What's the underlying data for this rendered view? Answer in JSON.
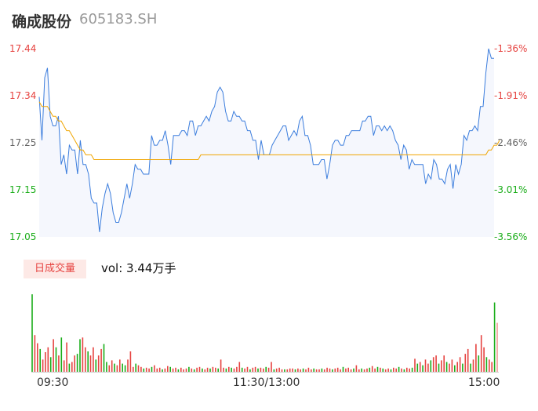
{
  "header": {
    "name": "确成股份",
    "code": "605183.SH"
  },
  "volume": {
    "badge": "日成交量",
    "text": "vol: 3.44万手"
  },
  "colors": {
    "price": "#3b7ddd",
    "avg": "#f0a500",
    "up": "#e64340",
    "down": "#1aad19",
    "area": "#f5f7fd"
  },
  "chart_data": {
    "type": "line",
    "title": "",
    "y_left_ticks": [
      "17.44",
      "17.34",
      "17.25",
      "17.15",
      "17.05"
    ],
    "y_right_ticks": [
      "-1.36%",
      "-1.91%",
      "-2.46%",
      "-3.01%",
      "-3.56%"
    ],
    "x_ticks": [
      "09:30",
      "11:30/13:00",
      "15:00"
    ],
    "ylim": [
      17.05,
      17.44
    ],
    "series": [
      {
        "values": [
          17.34,
          17.25,
          17.38,
          17.4,
          17.3,
          17.28,
          17.28,
          17.3,
          17.2,
          17.22,
          17.18,
          17.24,
          17.23,
          17.23,
          17.18,
          17.25,
          17.2,
          17.2,
          17.18,
          17.13,
          17.12,
          17.12,
          17.06,
          17.11,
          17.14,
          17.16,
          17.14,
          17.1,
          17.08,
          17.08,
          17.1,
          17.13,
          17.16,
          17.13,
          17.16,
          17.2,
          17.19,
          17.19,
          17.18,
          17.18,
          17.18,
          17.26,
          17.24,
          17.24,
          17.25,
          17.25,
          17.27,
          17.24,
          17.2,
          17.26,
          17.26,
          17.26,
          17.27,
          17.27,
          17.26,
          17.29,
          17.29,
          17.26,
          17.28,
          17.28,
          17.29,
          17.3,
          17.29,
          17.31,
          17.32,
          17.35,
          17.36,
          17.35,
          17.31,
          17.29,
          17.29,
          17.31,
          17.3,
          17.3,
          17.29,
          17.29,
          17.27,
          17.27,
          17.25,
          17.25,
          17.21,
          17.25,
          17.22,
          17.22,
          17.22,
          17.24,
          17.25,
          17.26,
          17.27,
          17.28,
          17.28,
          17.25,
          17.26,
          17.27,
          17.26,
          17.29,
          17.3,
          17.26,
          17.26,
          17.24,
          17.2,
          17.2,
          17.2,
          17.21,
          17.21,
          17.17,
          17.2,
          17.24,
          17.25,
          17.25,
          17.24,
          17.24,
          17.26,
          17.26,
          17.27,
          17.27,
          17.27,
          17.27,
          17.29,
          17.29,
          17.3,
          17.3,
          17.26,
          17.28,
          17.28,
          17.27,
          17.28,
          17.27,
          17.28,
          17.27,
          17.25,
          17.24,
          17.21,
          17.24,
          17.23,
          17.19,
          17.21,
          17.2,
          17.2,
          17.2,
          17.2,
          17.16,
          17.18,
          17.17,
          17.21,
          17.2,
          17.17,
          17.17,
          17.16,
          17.19,
          17.2,
          17.15,
          17.2,
          17.18,
          17.2,
          17.26,
          17.25,
          17.27,
          17.27,
          17.28,
          17.27,
          17.32,
          17.32,
          17.39,
          17.44,
          17.42,
          17.42
        ]
      },
      {
        "values": [
          17.33,
          17.32,
          17.32,
          17.32,
          17.31,
          17.3,
          17.3,
          17.29,
          17.29,
          17.28,
          17.27,
          17.27,
          17.26,
          17.25,
          17.24,
          17.23,
          17.23,
          17.22,
          17.22,
          17.22,
          17.21,
          17.21,
          17.21,
          17.21,
          17.21,
          17.21,
          17.21,
          17.21,
          17.21,
          17.21,
          17.21,
          17.21,
          17.21,
          17.21,
          17.21,
          17.21,
          17.21,
          17.21,
          17.21,
          17.21,
          17.21,
          17.21,
          17.21,
          17.21,
          17.21,
          17.21,
          17.21,
          17.21,
          17.21,
          17.21,
          17.21,
          17.21,
          17.21,
          17.21,
          17.21,
          17.21,
          17.21,
          17.21,
          17.21,
          17.22,
          17.22,
          17.22,
          17.22,
          17.22,
          17.22,
          17.22,
          17.22,
          17.22,
          17.22,
          17.22,
          17.22,
          17.22,
          17.22,
          17.22,
          17.22,
          17.22,
          17.22,
          17.22,
          17.22,
          17.22,
          17.22,
          17.22,
          17.22,
          17.22,
          17.22,
          17.22,
          17.22,
          17.22,
          17.22,
          17.22,
          17.22,
          17.22,
          17.22,
          17.22,
          17.22,
          17.22,
          17.22,
          17.22,
          17.22,
          17.22,
          17.22,
          17.22,
          17.22,
          17.22,
          17.22,
          17.22,
          17.22,
          17.22,
          17.22,
          17.22,
          17.22,
          17.22,
          17.22,
          17.22,
          17.22,
          17.22,
          17.22,
          17.22,
          17.22,
          17.22,
          17.22,
          17.22,
          17.22,
          17.22,
          17.22,
          17.22,
          17.22,
          17.22,
          17.22,
          17.22,
          17.22,
          17.22,
          17.22,
          17.22,
          17.22,
          17.22,
          17.22,
          17.22,
          17.22,
          17.22,
          17.22,
          17.22,
          17.22,
          17.22,
          17.22,
          17.22,
          17.22,
          17.22,
          17.22,
          17.22,
          17.22,
          17.22,
          17.22,
          17.22,
          17.22,
          17.22,
          17.22,
          17.22,
          17.22,
          17.22,
          17.22,
          17.22,
          17.22,
          17.22,
          17.23,
          17.23,
          17.24,
          17.24,
          17.25
        ]
      }
    ],
    "volume_bars": [
      [
        0.95,
        "down"
      ],
      [
        0.45,
        "up"
      ],
      [
        0.35,
        "up"
      ],
      [
        0.28,
        "down"
      ],
      [
        0.15,
        "up"
      ],
      [
        0.24,
        "up"
      ],
      [
        0.3,
        "up"
      ],
      [
        0.18,
        "down"
      ],
      [
        0.4,
        "up"
      ],
      [
        0.3,
        "down"
      ],
      [
        0.2,
        "up"
      ],
      [
        0.42,
        "down"
      ],
      [
        0.14,
        "up"
      ],
      [
        0.36,
        "up"
      ],
      [
        0.1,
        "down"
      ],
      [
        0.12,
        "up"
      ],
      [
        0.2,
        "up"
      ],
      [
        0.22,
        "down"
      ],
      [
        0.4,
        "down"
      ],
      [
        0.42,
        "up"
      ],
      [
        0.3,
        "up"
      ],
      [
        0.25,
        "down"
      ],
      [
        0.2,
        "up"
      ],
      [
        0.3,
        "up"
      ],
      [
        0.15,
        "down"
      ],
      [
        0.2,
        "up"
      ],
      [
        0.28,
        "up"
      ],
      [
        0.34,
        "down"
      ],
      [
        0.12,
        "down"
      ],
      [
        0.08,
        "up"
      ],
      [
        0.14,
        "up"
      ],
      [
        0.1,
        "down"
      ],
      [
        0.08,
        "up"
      ],
      [
        0.15,
        "up"
      ],
      [
        0.1,
        "down"
      ],
      [
        0.08,
        "down"
      ],
      [
        0.15,
        "up"
      ],
      [
        0.25,
        "up"
      ],
      [
        0.06,
        "up"
      ],
      [
        0.1,
        "down"
      ],
      [
        0.08,
        "up"
      ],
      [
        0.06,
        "up"
      ],
      [
        0.04,
        "down"
      ],
      [
        0.05,
        "up"
      ],
      [
        0.04,
        "up"
      ],
      [
        0.06,
        "down"
      ],
      [
        0.08,
        "up"
      ],
      [
        0.04,
        "up"
      ],
      [
        0.05,
        "up"
      ],
      [
        0.03,
        "down"
      ],
      [
        0.04,
        "up"
      ],
      [
        0.07,
        "up"
      ],
      [
        0.06,
        "down"
      ],
      [
        0.04,
        "up"
      ],
      [
        0.05,
        "up"
      ],
      [
        0.03,
        "down"
      ],
      [
        0.05,
        "up"
      ],
      [
        0.03,
        "up"
      ],
      [
        0.04,
        "up"
      ],
      [
        0.06,
        "down"
      ],
      [
        0.04,
        "up"
      ],
      [
        0.03,
        "down"
      ],
      [
        0.05,
        "up"
      ],
      [
        0.06,
        "up"
      ],
      [
        0.04,
        "down"
      ],
      [
        0.03,
        "up"
      ],
      [
        0.05,
        "up"
      ],
      [
        0.04,
        "down"
      ],
      [
        0.06,
        "up"
      ],
      [
        0.05,
        "up"
      ],
      [
        0.04,
        "down"
      ],
      [
        0.15,
        "up"
      ],
      [
        0.05,
        "up"
      ],
      [
        0.04,
        "down"
      ],
      [
        0.06,
        "up"
      ],
      [
        0.05,
        "down"
      ],
      [
        0.04,
        "up"
      ],
      [
        0.06,
        "up"
      ],
      [
        0.12,
        "up"
      ],
      [
        0.05,
        "down"
      ],
      [
        0.04,
        "up"
      ],
      [
        0.06,
        "up"
      ],
      [
        0.03,
        "down"
      ],
      [
        0.05,
        "up"
      ],
      [
        0.06,
        "up"
      ],
      [
        0.04,
        "down"
      ],
      [
        0.05,
        "up"
      ],
      [
        0.04,
        "up"
      ],
      [
        0.06,
        "down"
      ],
      [
        0.05,
        "up"
      ],
      [
        0.12,
        "up"
      ],
      [
        0.03,
        "down"
      ],
      [
        0.04,
        "up"
      ],
      [
        0.05,
        "up"
      ],
      [
        0.03,
        "up"
      ],
      [
        0.03,
        "down"
      ],
      [
        0.03,
        "up"
      ],
      [
        0.04,
        "up"
      ],
      [
        0.04,
        "up"
      ],
      [
        0.03,
        "down"
      ],
      [
        0.04,
        "up"
      ],
      [
        0.03,
        "up"
      ],
      [
        0.04,
        "down"
      ],
      [
        0.03,
        "up"
      ],
      [
        0.05,
        "up"
      ],
      [
        0.03,
        "up"
      ],
      [
        0.04,
        "down"
      ],
      [
        0.03,
        "up"
      ],
      [
        0.03,
        "up"
      ],
      [
        0.04,
        "down"
      ],
      [
        0.03,
        "up"
      ],
      [
        0.05,
        "up"
      ],
      [
        0.04,
        "up"
      ],
      [
        0.03,
        "down"
      ],
      [
        0.04,
        "up"
      ],
      [
        0.05,
        "up"
      ],
      [
        0.03,
        "up"
      ],
      [
        0.06,
        "down"
      ],
      [
        0.04,
        "up"
      ],
      [
        0.05,
        "up"
      ],
      [
        0.03,
        "up"
      ],
      [
        0.04,
        "down"
      ],
      [
        0.08,
        "up"
      ],
      [
        0.03,
        "up"
      ],
      [
        0.04,
        "down"
      ],
      [
        0.03,
        "up"
      ],
      [
        0.04,
        "up"
      ],
      [
        0.05,
        "down"
      ],
      [
        0.07,
        "up"
      ],
      [
        0.04,
        "up"
      ],
      [
        0.06,
        "down"
      ],
      [
        0.05,
        "up"
      ],
      [
        0.04,
        "down"
      ],
      [
        0.03,
        "up"
      ],
      [
        0.04,
        "up"
      ],
      [
        0.03,
        "down"
      ],
      [
        0.05,
        "up"
      ],
      [
        0.04,
        "up"
      ],
      [
        0.06,
        "down"
      ],
      [
        0.04,
        "up"
      ],
      [
        0.03,
        "down"
      ],
      [
        0.05,
        "up"
      ],
      [
        0.04,
        "up"
      ],
      [
        0.05,
        "down"
      ],
      [
        0.16,
        "up"
      ],
      [
        0.1,
        "down"
      ],
      [
        0.12,
        "up"
      ],
      [
        0.08,
        "down"
      ],
      [
        0.15,
        "up"
      ],
      [
        0.1,
        "up"
      ],
      [
        0.14,
        "down"
      ],
      [
        0.18,
        "up"
      ],
      [
        0.2,
        "up"
      ],
      [
        0.1,
        "down"
      ],
      [
        0.14,
        "up"
      ],
      [
        0.2,
        "up"
      ],
      [
        0.12,
        "down"
      ],
      [
        0.1,
        "up"
      ],
      [
        0.15,
        "up"
      ],
      [
        0.08,
        "down"
      ],
      [
        0.12,
        "up"
      ],
      [
        0.18,
        "up"
      ],
      [
        0.1,
        "down"
      ],
      [
        0.22,
        "up"
      ],
      [
        0.28,
        "up"
      ],
      [
        0.1,
        "down"
      ],
      [
        0.15,
        "up"
      ],
      [
        0.34,
        "up"
      ],
      [
        0.2,
        "down"
      ],
      [
        0.45,
        "up"
      ],
      [
        0.3,
        "up"
      ],
      [
        0.18,
        "down"
      ],
      [
        0.15,
        "up"
      ],
      [
        0.12,
        "up"
      ],
      [
        0.85,
        "down"
      ],
      [
        0.6,
        "up"
      ]
    ]
  }
}
